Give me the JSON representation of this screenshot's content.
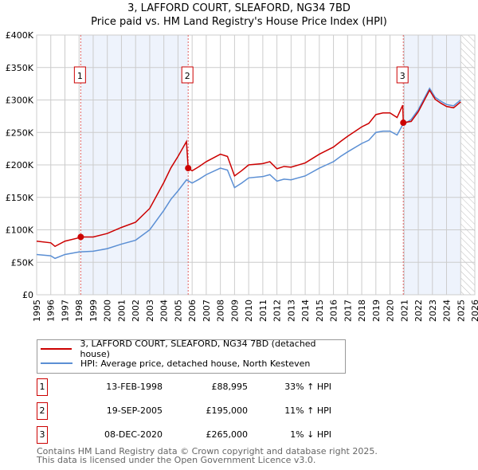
{
  "chart_data": {
    "type": "line",
    "title": "3, LAFFORD COURT, SLEAFORD, NG34 7BD",
    "subtitle": "Price paid vs. HM Land Registry's House Price Index (HPI)",
    "xlim": [
      1995,
      2026
    ],
    "ylim": [
      0,
      400000
    ],
    "ytick_labels": [
      "£0",
      "£50K",
      "£100K",
      "£150K",
      "£200K",
      "£250K",
      "£300K",
      "£350K",
      "£400K"
    ],
    "yticks": [
      0,
      50000,
      100000,
      150000,
      200000,
      250000,
      300000,
      350000,
      400000
    ],
    "xticks": [
      1995,
      1996,
      1997,
      1998,
      1999,
      2000,
      2001,
      2002,
      2003,
      2004,
      2005,
      2006,
      2007,
      2008,
      2009,
      2010,
      2011,
      2012,
      2013,
      2014,
      2015,
      2016,
      2017,
      2018,
      2019,
      2020,
      2021,
      2022,
      2023,
      2024,
      2025,
      2026
    ],
    "grid": true,
    "shaded_ranges": [
      [
        1998.12,
        2005.72
      ],
      [
        2020.94,
        2025.0
      ]
    ],
    "hatched_from": 2025.0,
    "series": [
      {
        "name": "3, LAFFORD COURT, SLEAFORD, NG34 7BD (detached house)",
        "color": "#cc0000",
        "x": [
          1995,
          1996,
          1996.3,
          1997,
          1998,
          1998.12,
          1999,
          2000,
          2001,
          2002,
          2003,
          2004,
          2004.5,
          2005,
          2005.6,
          2005.72,
          2006,
          2006.5,
          2007,
          2008,
          2008.5,
          2009,
          2009.5,
          2010,
          2011,
          2011.5,
          2012,
          2012.5,
          2013,
          2014,
          2015,
          2015.5,
          2016,
          2016.5,
          2017,
          2018,
          2018.5,
          2019,
          2019.5,
          2020,
          2020.5,
          2020.9,
          2020.94,
          2021.5,
          2022,
          2022.8,
          2023.2,
          2023.6,
          2024,
          2024.5,
          2025
        ],
        "y": [
          82500,
          80000,
          74500,
          82500,
          87800,
          88995,
          89000,
          94400,
          103700,
          111700,
          133000,
          173000,
          195500,
          213000,
          236000,
          195000,
          191000,
          197600,
          205000,
          216500,
          213000,
          183000,
          191000,
          200000,
          202000,
          205000,
          194000,
          197600,
          196500,
          203000,
          216500,
          222000,
          227500,
          236000,
          244000,
          258600,
          264000,
          277500,
          280000,
          280000,
          273000,
          292000,
          265000,
          267000,
          282000,
          315000,
          301000,
          295000,
          290000,
          288000,
          297000
        ]
      },
      {
        "name": "HPI: Average price, detached house, North Kesteven",
        "color": "#5b8fd4",
        "x": [
          1995,
          1996,
          1996.3,
          1997,
          1998,
          1999,
          2000,
          2001,
          2002,
          2003,
          2004,
          2004.5,
          2005,
          2005.6,
          2006,
          2006.5,
          2007,
          2008,
          2008.5,
          2009,
          2009.5,
          2010,
          2011,
          2011.5,
          2012,
          2012.5,
          2013,
          2014,
          2015,
          2015.5,
          2016,
          2016.5,
          2017,
          2018,
          2018.5,
          2019,
          2019.5,
          2020,
          2020.5,
          2020.9,
          2021,
          2021.5,
          2022,
          2022.8,
          2023.2,
          2023.6,
          2024,
          2024.5,
          2025
        ],
        "y": [
          62000,
          60000,
          56000,
          62000,
          66000,
          67000,
          71000,
          78000,
          84000,
          100000,
          130000,
          147000,
          160000,
          177000,
          172000,
          178000,
          185000,
          195000,
          192000,
          165000,
          172000,
          180000,
          182000,
          185000,
          175000,
          178000,
          177000,
          183000,
          195000,
          200000,
          205000,
          213000,
          220000,
          233000,
          238000,
          250000,
          252000,
          252000,
          246000,
          262000,
          263000,
          270000,
          285000,
          318000,
          304000,
          298000,
          293000,
          291000,
          300000
        ]
      }
    ],
    "sales": [
      {
        "label": "1",
        "date": "13-FEB-1998",
        "x": 1998.12,
        "price": "£88,995",
        "value": 88995,
        "hpi": "33% ↑ HPI"
      },
      {
        "label": "2",
        "date": "19-SEP-2005",
        "x": 2005.72,
        "price": "£195,000",
        "value": 195000,
        "hpi": "11% ↑ HPI"
      },
      {
        "label": "3",
        "date": "08-DEC-2020",
        "x": 2020.94,
        "price": "£265,000",
        "value": 265000,
        "hpi": "1% ↓ HPI"
      }
    ]
  },
  "legend": {
    "property": "3, LAFFORD COURT, SLEAFORD, NG34 7BD (detached house)",
    "hpi": "HPI: Average price, detached house, North Kesteven"
  },
  "footer": {
    "line1": "Contains HM Land Registry data © Crown copyright and database right 2025.",
    "line2": "This data is licensed under the Open Government Licence v3.0."
  }
}
